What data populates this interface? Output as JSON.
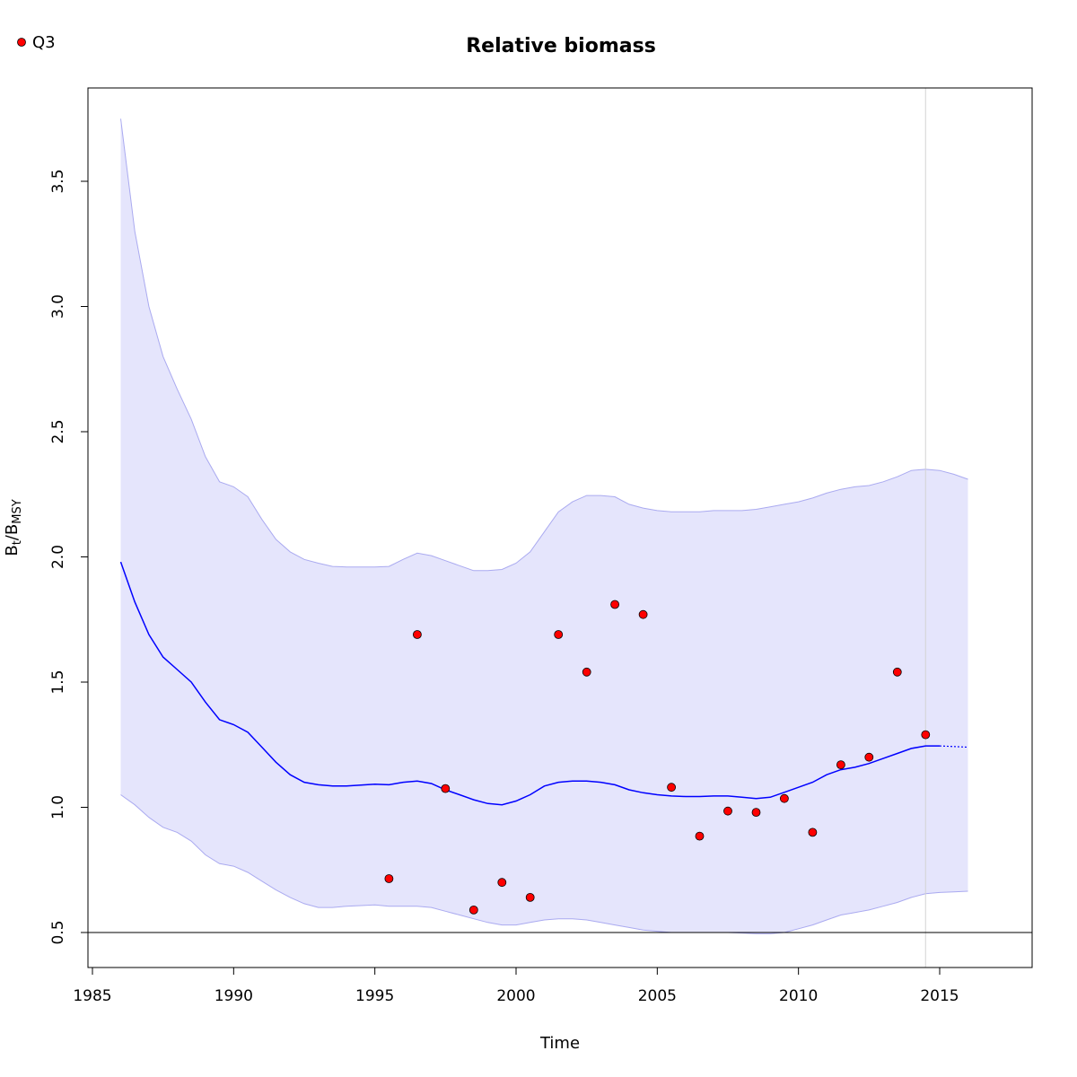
{
  "chart_data": {
    "type": "line",
    "title": "Relative biomass",
    "xlabel": "Time",
    "ylabel_main": "B",
    "ylabel_sub1": "t",
    "ylabel_slash": "/B",
    "ylabel_sub2": "MSY",
    "xlim": [
      1985,
      2018
    ],
    "ylim": [
      0.36,
      3.75
    ],
    "xticks": [
      1985,
      1990,
      1995,
      2000,
      2005,
      2010,
      2015
    ],
    "yticks": [
      0.5,
      1.0,
      1.5,
      2.0,
      2.5,
      3.0,
      3.5
    ],
    "xtick_labels": [
      "1985",
      "1990",
      "1995",
      "2000",
      "2005",
      "2010",
      "2015"
    ],
    "ytick_labels": [
      "0.5",
      "1.0",
      "1.5",
      "2.0",
      "2.5",
      "3.0",
      "3.5"
    ],
    "reference_hline": 0.5,
    "reference_vline": 2014.5,
    "legend": {
      "placement": "top-left",
      "entries": [
        "Q3"
      ]
    },
    "colors": {
      "estimate": "#0000ff",
      "band": "#e5e5fc",
      "band_edge": "#aaaaf0",
      "points": "#ff0000",
      "vline": "#d3d3d3"
    },
    "estimate": {
      "x": [
        1986.0,
        1986.5,
        1987.0,
        1987.5,
        1988.0,
        1988.5,
        1989.0,
        1989.5,
        1990.0,
        1990.5,
        1991.0,
        1991.5,
        1992.0,
        1992.5,
        1993.0,
        1993.5,
        1994.0,
        1995.0,
        1995.5,
        1996.0,
        1996.5,
        1997.0,
        1997.5,
        1998.0,
        1998.5,
        1999.0,
        1999.5,
        2000.0,
        2000.5,
        2001.0,
        2001.5,
        2002.0,
        2002.5,
        2003.0,
        2003.5,
        2004.0,
        2004.5,
        2005.0,
        2005.5,
        2006.0,
        2006.5,
        2007.0,
        2007.5,
        2008.0,
        2008.5,
        2009.0,
        2009.5,
        2010.0,
        2010.5,
        2011.0,
        2011.5,
        2012.0,
        2012.5,
        2013.0,
        2013.5,
        2014.0,
        2014.5,
        2015.0
      ],
      "y": [
        1.98,
        1.82,
        1.69,
        1.6,
        1.55,
        1.5,
        1.42,
        1.35,
        1.33,
        1.3,
        1.24,
        1.18,
        1.13,
        1.1,
        1.09,
        1.085,
        1.085,
        1.092,
        1.09,
        1.1,
        1.105,
        1.095,
        1.07,
        1.05,
        1.03,
        1.015,
        1.01,
        1.025,
        1.05,
        1.085,
        1.1,
        1.105,
        1.105,
        1.1,
        1.09,
        1.07,
        1.058,
        1.05,
        1.045,
        1.043,
        1.043,
        1.045,
        1.045,
        1.04,
        1.035,
        1.04,
        1.06,
        1.08,
        1.1,
        1.13,
        1.15,
        1.16,
        1.175,
        1.195,
        1.215,
        1.235,
        1.245,
        1.245
      ]
    },
    "projection": {
      "x": [
        2015.0,
        2016.0
      ],
      "y": [
        1.245,
        1.24
      ]
    },
    "band_upper": {
      "x": [
        1986.0,
        1986.5,
        1987.0,
        1987.5,
        1988.0,
        1988.5,
        1989.0,
        1989.5,
        1990.0,
        1990.5,
        1991.0,
        1991.5,
        1992.0,
        1992.5,
        1993.0,
        1993.5,
        1994.0,
        1995.0,
        1995.5,
        1996.0,
        1996.5,
        1997.0,
        1997.5,
        1998.0,
        1998.5,
        1999.0,
        1999.5,
        2000.0,
        2000.5,
        2001.0,
        2001.5,
        2002.0,
        2002.5,
        2003.0,
        2003.5,
        2004.0,
        2004.5,
        2005.0,
        2005.5,
        2006.0,
        2006.5,
        2007.0,
        2007.5,
        2008.0,
        2008.5,
        2009.0,
        2009.5,
        2010.0,
        2010.5,
        2011.0,
        2011.5,
        2012.0,
        2012.5,
        2013.0,
        2013.5,
        2014.0,
        2014.5,
        2015.0,
        2015.5,
        2016.0
      ],
      "y": [
        3.75,
        3.3,
        3.0,
        2.8,
        2.67,
        2.55,
        2.4,
        2.3,
        2.28,
        2.24,
        2.15,
        2.07,
        2.02,
        1.99,
        1.975,
        1.962,
        1.96,
        1.96,
        1.962,
        1.99,
        2.015,
        2.005,
        1.985,
        1.965,
        1.945,
        1.945,
        1.95,
        1.975,
        2.02,
        2.1,
        2.18,
        2.22,
        2.245,
        2.245,
        2.24,
        2.21,
        2.195,
        2.185,
        2.18,
        2.18,
        2.18,
        2.185,
        2.185,
        2.185,
        2.19,
        2.2,
        2.21,
        2.22,
        2.235,
        2.255,
        2.27,
        2.28,
        2.285,
        2.3,
        2.32,
        2.345,
        2.35,
        2.345,
        2.33,
        2.31
      ]
    },
    "band_lower": {
      "x": [
        1986.0,
        1986.5,
        1987.0,
        1987.5,
        1988.0,
        1988.5,
        1989.0,
        1989.5,
        1990.0,
        1990.5,
        1991.0,
        1991.5,
        1992.0,
        1992.5,
        1993.0,
        1993.5,
        1994.0,
        1995.0,
        1995.5,
        1996.0,
        1996.5,
        1997.0,
        1997.5,
        1998.0,
        1998.5,
        1999.0,
        1999.5,
        2000.0,
        2000.5,
        2001.0,
        2001.5,
        2002.0,
        2002.5,
        2003.0,
        2003.5,
        2004.0,
        2004.5,
        2005.0,
        2005.5,
        2006.0,
        2006.5,
        2007.0,
        2007.5,
        2008.0,
        2008.5,
        2009.0,
        2009.5,
        2010.0,
        2010.5,
        2011.0,
        2011.5,
        2012.0,
        2012.5,
        2013.0,
        2013.5,
        2014.0,
        2014.5,
        2015.0,
        2015.5,
        2016.0
      ],
      "y": [
        1.05,
        1.01,
        0.96,
        0.92,
        0.9,
        0.865,
        0.81,
        0.775,
        0.765,
        0.74,
        0.705,
        0.67,
        0.64,
        0.615,
        0.6,
        0.6,
        0.605,
        0.61,
        0.605,
        0.605,
        0.605,
        0.6,
        0.585,
        0.57,
        0.555,
        0.54,
        0.53,
        0.53,
        0.54,
        0.55,
        0.555,
        0.555,
        0.55,
        0.54,
        0.53,
        0.52,
        0.51,
        0.505,
        0.5,
        0.5,
        0.5,
        0.5,
        0.5,
        0.498,
        0.495,
        0.495,
        0.5,
        0.515,
        0.53,
        0.55,
        0.57,
        0.58,
        0.59,
        0.605,
        0.62,
        0.64,
        0.655,
        0.66,
        0.662,
        0.665
      ]
    },
    "series": [
      {
        "name": "Q3",
        "x": [
          1995.5,
          1996.5,
          1997.5,
          1998.5,
          1999.5,
          2000.5,
          2001.5,
          2002.5,
          2003.5,
          2004.5,
          2005.5,
          2006.5,
          2007.5,
          2008.5,
          2009.5,
          2010.5,
          2011.5,
          2012.5,
          2013.5,
          2014.5
        ],
        "y": [
          0.715,
          1.69,
          1.075,
          0.59,
          0.7,
          0.64,
          1.69,
          1.54,
          1.81,
          1.77,
          1.08,
          0.885,
          0.985,
          0.98,
          1.035,
          0.9,
          1.17,
          1.2,
          1.54,
          1.29
        ]
      }
    ]
  }
}
